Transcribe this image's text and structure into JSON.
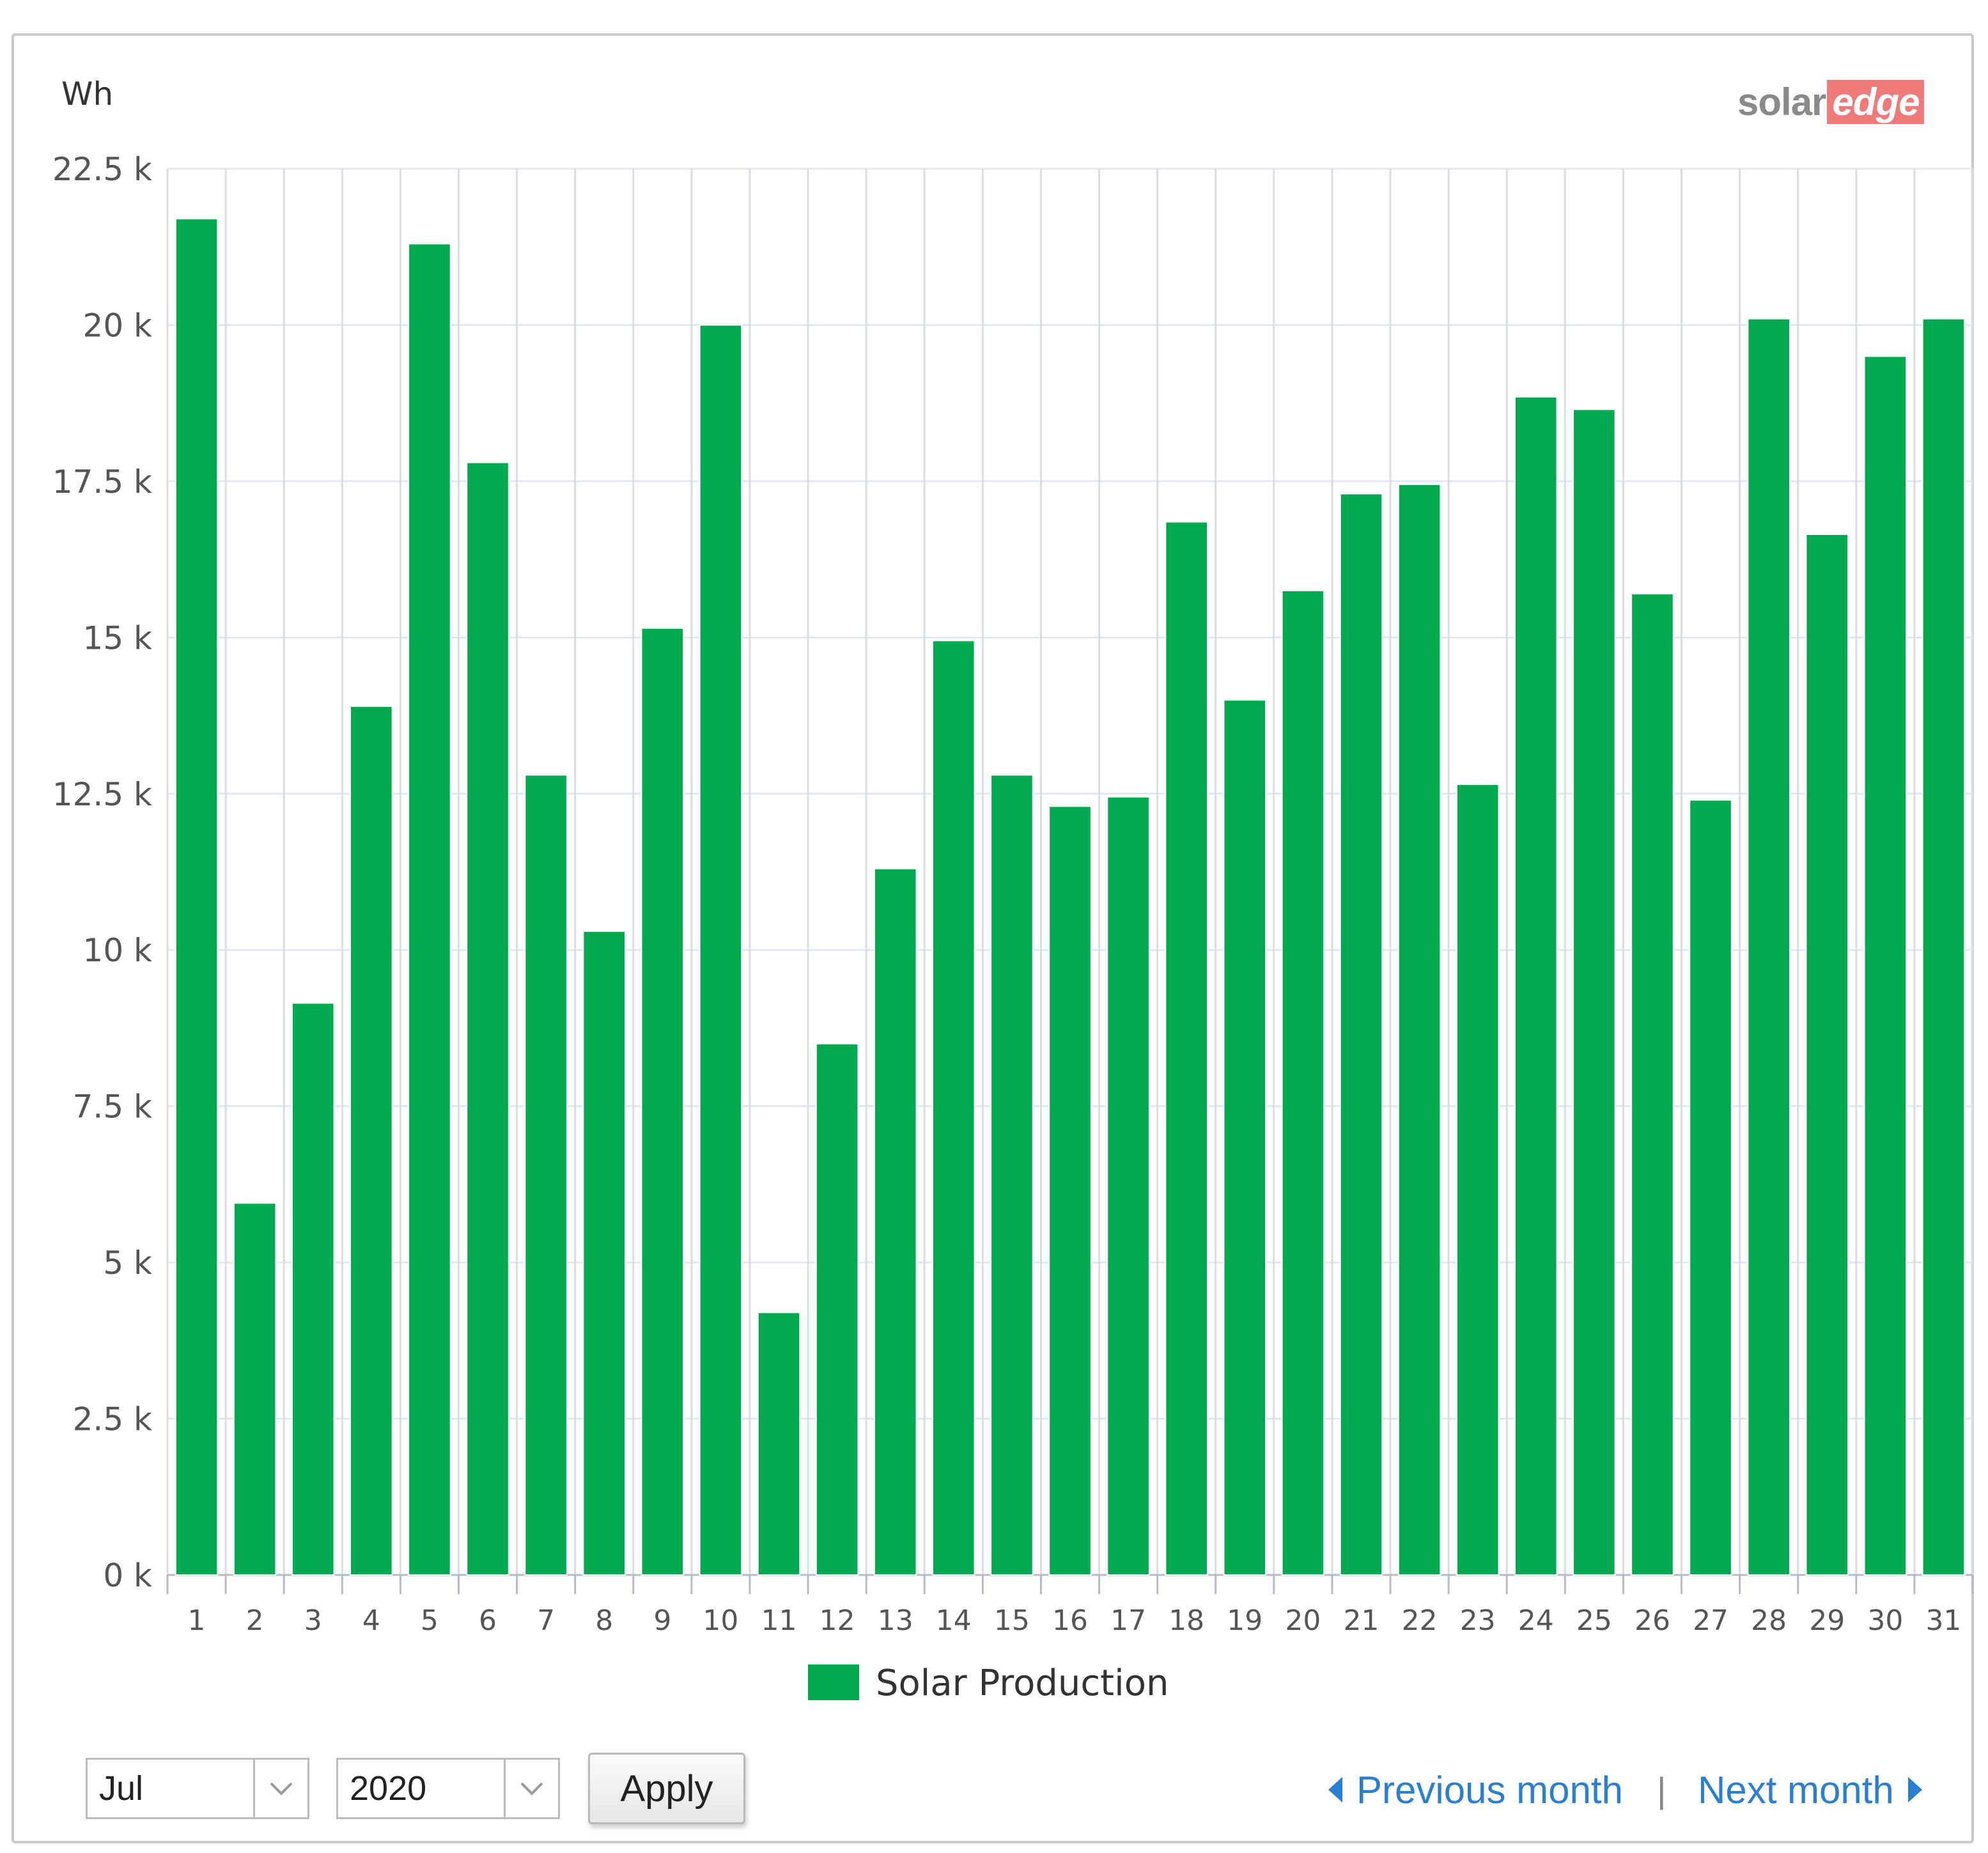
{
  "brand": {
    "logo_solar": "solar",
    "logo_edge": "edge",
    "logo_color_solar": "#8a8a8a",
    "logo_color_edge": "#f07a7a"
  },
  "chart_data": {
    "type": "bar",
    "title": "",
    "ylabel": "Wh",
    "xlabel": "",
    "ylim": [
      0,
      22500
    ],
    "yticks": [
      0,
      2500,
      5000,
      7500,
      10000,
      12500,
      15000,
      17500,
      20000,
      22500
    ],
    "ytick_labels": [
      "0 k",
      "2.5 k",
      "5 k",
      "7.5 k",
      "10 k",
      "12.5 k",
      "15 k",
      "17.5 k",
      "20 k",
      "22.5 k"
    ],
    "categories": [
      "1",
      "2",
      "3",
      "4",
      "5",
      "6",
      "7",
      "8",
      "9",
      "10",
      "11",
      "12",
      "13",
      "14",
      "15",
      "16",
      "17",
      "18",
      "19",
      "20",
      "21",
      "22",
      "23",
      "24",
      "25",
      "26",
      "27",
      "28",
      "29",
      "30",
      "31"
    ],
    "series": [
      {
        "name": "Solar Production",
        "color": "#00a94f",
        "values": [
          21700,
          5950,
          9150,
          13900,
          21300,
          17800,
          12800,
          10300,
          15150,
          20000,
          4200,
          8500,
          11300,
          14950,
          12800,
          12300,
          12450,
          16850,
          14000,
          15750,
          17300,
          17450,
          12650,
          18850,
          18650,
          15700,
          12400,
          20100,
          16650,
          19500,
          20100
        ]
      }
    ],
    "legend": "bottom-center",
    "grid": true
  },
  "controls": {
    "month_value": "Jul",
    "year_value": "2020",
    "apply_label": "Apply",
    "prev_label": "Previous month",
    "separator": "|",
    "next_label": "Next month",
    "link_color": "#2a7fd2"
  }
}
